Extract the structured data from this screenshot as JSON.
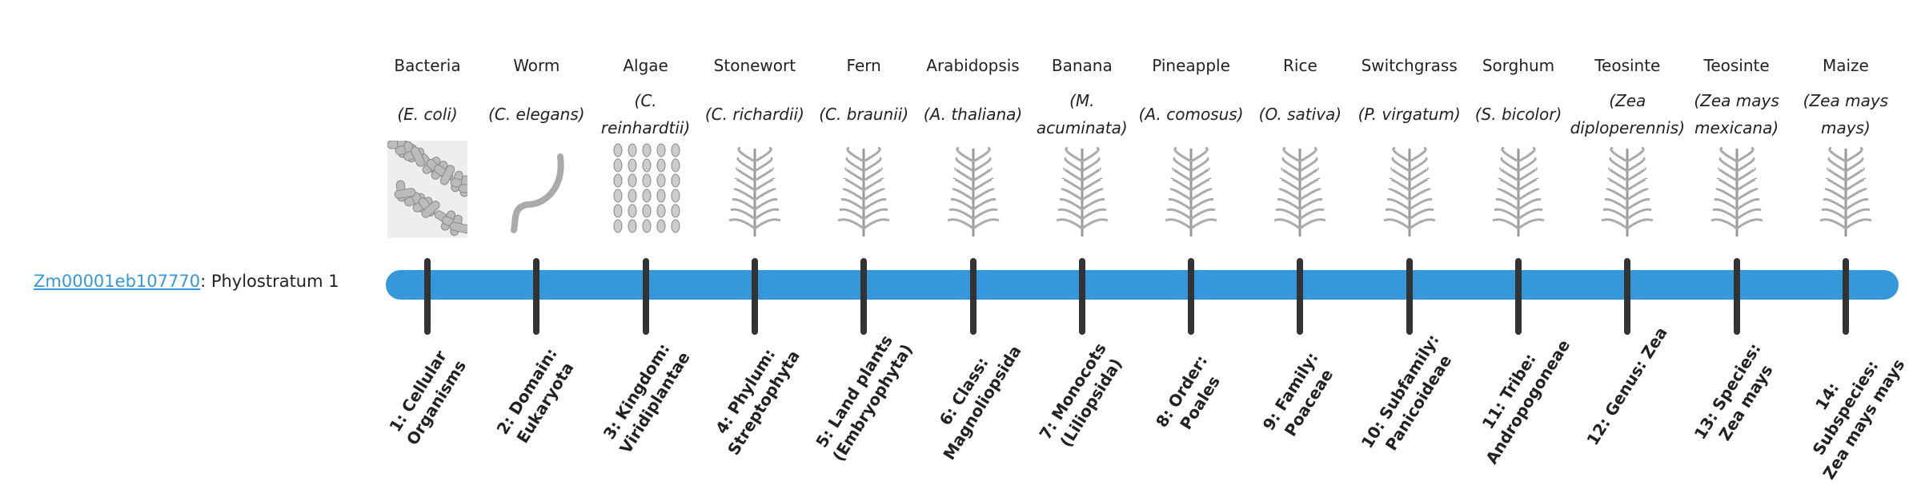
{
  "gene": {
    "id": "Zm00001eb107770",
    "suffix": ": Phylostratum 1"
  },
  "colors": {
    "bar": "#3498db",
    "tick": "#333333",
    "link": "#3498db"
  },
  "strata": [
    {
      "common": "Bacteria",
      "scientific": "(E. coli)",
      "rank": "1: Cellular Organisms",
      "icon": "bacteria-icon"
    },
    {
      "common": "Worm",
      "scientific": "(C. elegans)",
      "rank": "2: Domain: Eukaryota",
      "icon": "worm-icon"
    },
    {
      "common": "Algae",
      "scientific": "(C. reinhardtii)",
      "rank": "3: Kingdom: Viridiplantae",
      "icon": "algae-icon"
    },
    {
      "common": "Stonewort",
      "scientific": "(C. richardii)",
      "rank": "4: Phylum: Streptophyta",
      "icon": "stonewort-icon"
    },
    {
      "common": "Fern",
      "scientific": "(C. braunii)",
      "rank": "5: Land plants (Embryophyta)",
      "icon": "fern-icon"
    },
    {
      "common": "Arabidopsis",
      "scientific": "(A. thaliana)",
      "rank": "6: Class: Magnoliopsida",
      "icon": "arabidopsis-icon"
    },
    {
      "common": "Banana",
      "scientific": "(M. acuminata)",
      "rank": "7: Monocots (Liliopsida)",
      "icon": "banana-icon"
    },
    {
      "common": "Pineapple",
      "scientific": "(A. comosus)",
      "rank": "8: Order: Poales",
      "icon": "pineapple-icon"
    },
    {
      "common": "Rice",
      "scientific": "(O. sativa)",
      "rank": "9: Family: Poaceae",
      "icon": "rice-icon"
    },
    {
      "common": "Switchgrass",
      "scientific": "(P. virgatum)",
      "rank": "10: Subfamily: Panicoideae",
      "icon": "switchgrass-icon"
    },
    {
      "common": "Sorghum",
      "scientific": "(S. bicolor)",
      "rank": "11: Tribe: Andropogoneae",
      "icon": "sorghum-icon"
    },
    {
      "common": "Teosinte",
      "scientific": "(Zea diploperennis)",
      "rank": "12: Genus: Zea",
      "icon": "teosinte-icon"
    },
    {
      "common": "Teosinte",
      "scientific": "(Zea mays mexicana)",
      "rank": "13: Species: Zea mays",
      "icon": "teosinte-icon"
    },
    {
      "common": "Maize",
      "scientific": "(Zea mays mays)",
      "rank": "14: Subspecies: Zea mays mays",
      "icon": "maize-icon"
    }
  ]
}
